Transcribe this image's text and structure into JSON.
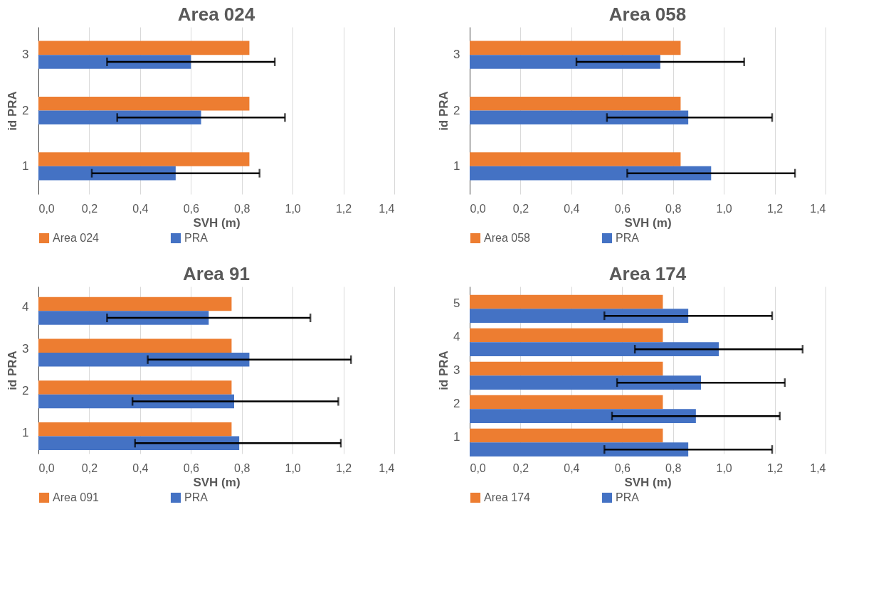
{
  "chart_data": [
    {
      "type": "bar",
      "orientation": "horizontal",
      "title": "Area 024",
      "xlabel": "SVH (m)",
      "ylabel": "id PRA",
      "categories": [
        "3",
        "2",
        "1"
      ],
      "series": [
        {
          "name": "Area 024",
          "color": "#ed7d31",
          "values": [
            0.83,
            0.83,
            0.83
          ]
        },
        {
          "name": "PRA",
          "color": "#4472c4",
          "values": [
            0.6,
            0.64,
            0.54
          ],
          "errors": [
            [
              0.27,
              0.93
            ],
            [
              0.31,
              0.97
            ],
            [
              0.21,
              0.87
            ]
          ]
        }
      ],
      "xlim": [
        0,
        1.4
      ],
      "xticks": [
        {
          "value": 0,
          "label": "0,0"
        },
        {
          "value": 0.2,
          "label": "0,2"
        },
        {
          "value": 0.4,
          "label": "0,4"
        },
        {
          "value": 0.6,
          "label": "0,6"
        },
        {
          "value": 0.8,
          "label": "0,8"
        },
        {
          "value": 1.0,
          "label": "1,0"
        },
        {
          "value": 1.2,
          "label": "1,2"
        },
        {
          "value": 1.4,
          "label": "1,4"
        }
      ],
      "grid": "x",
      "legend": "bottom"
    },
    {
      "type": "bar",
      "orientation": "horizontal",
      "title": "Area 058",
      "xlabel": "SVH (m)",
      "ylabel": "id PRA",
      "categories": [
        "3",
        "2",
        "1"
      ],
      "series": [
        {
          "name": "Area 058",
          "color": "#ed7d31",
          "values": [
            0.83,
            0.83,
            0.83
          ]
        },
        {
          "name": "PRA",
          "color": "#4472c4",
          "values": [
            0.75,
            0.86,
            0.95
          ],
          "errors": [
            [
              0.42,
              1.08
            ],
            [
              0.54,
              1.19
            ],
            [
              0.62,
              1.28
            ]
          ]
        }
      ],
      "xlim": [
        0,
        1.4
      ],
      "xticks": [
        {
          "value": 0,
          "label": "0,0"
        },
        {
          "value": 0.2,
          "label": "0,2"
        },
        {
          "value": 0.4,
          "label": "0,4"
        },
        {
          "value": 0.6,
          "label": "0,6"
        },
        {
          "value": 0.8,
          "label": "0,8"
        },
        {
          "value": 1.0,
          "label": "1,0"
        },
        {
          "value": 1.2,
          "label": "1,2"
        },
        {
          "value": 1.4,
          "label": "1,4"
        }
      ],
      "grid": "x",
      "legend": "bottom"
    },
    {
      "type": "bar",
      "orientation": "horizontal",
      "title": "Area 91",
      "xlabel": "SVH (m)",
      "ylabel": "id PRA",
      "categories": [
        "4",
        "3",
        "2",
        "1"
      ],
      "series": [
        {
          "name": "Area 091",
          "color": "#ed7d31",
          "values": [
            0.76,
            0.76,
            0.76,
            0.76
          ]
        },
        {
          "name": "PRA",
          "color": "#4472c4",
          "values": [
            0.67,
            0.83,
            0.77,
            0.79
          ],
          "errors": [
            [
              0.27,
              1.07
            ],
            [
              0.43,
              1.23
            ],
            [
              0.37,
              1.18
            ],
            [
              0.38,
              1.19
            ]
          ]
        }
      ],
      "xlim": [
        0,
        1.4
      ],
      "xticks": [
        {
          "value": 0,
          "label": "0,0"
        },
        {
          "value": 0.2,
          "label": "0,2"
        },
        {
          "value": 0.4,
          "label": "0,4"
        },
        {
          "value": 0.6,
          "label": "0,6"
        },
        {
          "value": 0.8,
          "label": "0,8"
        },
        {
          "value": 1.0,
          "label": "1,0"
        },
        {
          "value": 1.2,
          "label": "1,2"
        },
        {
          "value": 1.4,
          "label": "1,4"
        }
      ],
      "grid": "x",
      "legend": "bottom"
    },
    {
      "type": "bar",
      "orientation": "horizontal",
      "title": "Area 174",
      "xlabel": "SVH (m)",
      "ylabel": "id PRA",
      "categories": [
        "5",
        "4",
        "3",
        "2",
        "1"
      ],
      "series": [
        {
          "name": "Area 174",
          "color": "#ed7d31",
          "values": [
            0.76,
            0.76,
            0.76,
            0.76,
            0.76
          ]
        },
        {
          "name": "PRA",
          "color": "#4472c4",
          "values": [
            0.86,
            0.98,
            0.91,
            0.89,
            0.86
          ],
          "errors": [
            [
              0.53,
              1.19
            ],
            [
              0.65,
              1.31
            ],
            [
              0.58,
              1.24
            ],
            [
              0.56,
              1.22
            ],
            [
              0.53,
              1.19
            ]
          ]
        }
      ],
      "xlim": [
        0,
        1.4
      ],
      "xticks": [
        {
          "value": 0,
          "label": "0,0"
        },
        {
          "value": 0.2,
          "label": "0,2"
        },
        {
          "value": 0.4,
          "label": "0,4"
        },
        {
          "value": 0.6,
          "label": "0,6"
        },
        {
          "value": 0.8,
          "label": "0,8"
        },
        {
          "value": 1.0,
          "label": "1,0"
        },
        {
          "value": 1.2,
          "label": "1,2"
        },
        {
          "value": 1.4,
          "label": "1,4"
        }
      ],
      "grid": "x",
      "legend": "bottom"
    }
  ]
}
